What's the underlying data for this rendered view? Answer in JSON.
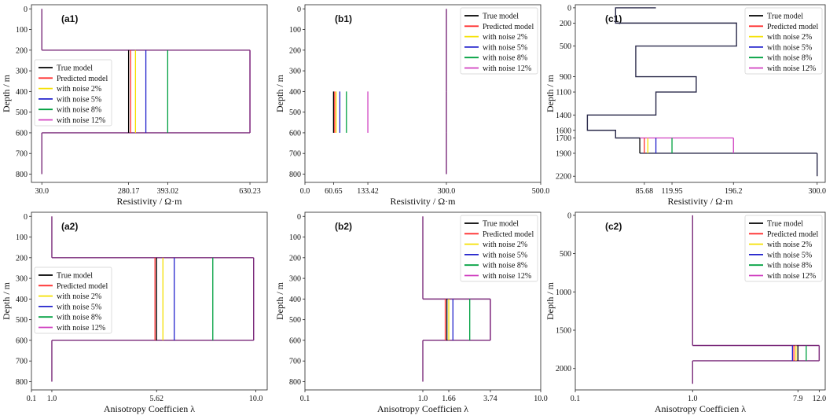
{
  "colors": {
    "true_model": "#000000",
    "predicted": "#ff3030",
    "noise2": "#f5e000",
    "noise5": "#2222cc",
    "noise8": "#00a040",
    "noise12": "#d040c0",
    "overlay": "#7a2a7a"
  },
  "chart_data": [
    {
      "id": "a1",
      "type": "line",
      "panel_label": "(a1)",
      "xlabel": "Resistivity / Ω·m",
      "ylabel": "Depth / m",
      "xscale": "linear",
      "xlim": [
        0,
        680
      ],
      "ylim": [
        -20,
        840
      ],
      "xticks": [
        30.0,
        280.17,
        393.02,
        630.23
      ],
      "xtick_labels": [
        "30.0",
        "280.17",
        "393.02",
        "630.23"
      ],
      "yticks": [
        0,
        100,
        200,
        300,
        400,
        500,
        600,
        700,
        800
      ],
      "ytick_labels": [
        "0",
        "100",
        "200",
        "300",
        "400",
        "500",
        "600",
        "700",
        "800"
      ],
      "legend": [
        "True model",
        "Predicted model",
        "with noise 2%",
        "with noise 5%",
        "with noise 8%",
        "with noise 12%"
      ],
      "legend_position": "center-left",
      "base_layers": [
        {
          "top": 0,
          "bottom": 200,
          "value": 30
        },
        {
          "top": 600,
          "bottom": 800,
          "value": 30
        }
      ],
      "anomaly_layer": {
        "top": 200,
        "bottom": 600,
        "right_edge": 630.23
      },
      "series": [
        {
          "name": "True model",
          "key": "true_model",
          "value": 280.17
        },
        {
          "name": "Predicted model",
          "key": "predicted",
          "value": 286
        },
        {
          "name": "with noise 2%",
          "key": "noise2",
          "value": 300
        },
        {
          "name": "with noise 5%",
          "key": "noise5",
          "value": 330
        },
        {
          "name": "with noise 8%",
          "key": "noise8",
          "value": 393.02
        },
        {
          "name": "with noise 12%",
          "key": "noise12",
          "value": 630.23
        }
      ]
    },
    {
      "id": "b1",
      "type": "line",
      "panel_label": "(b1)",
      "xlabel": "Resistivity / Ω·m",
      "ylabel": "Depth / m",
      "xscale": "linear",
      "xlim": [
        0,
        500
      ],
      "ylim": [
        -20,
        840
      ],
      "xticks": [
        0,
        60.65,
        133.42,
        300.0,
        500.0
      ],
      "xtick_labels": [
        "0.0",
        "60.65",
        "133.42",
        "300.0",
        "500.0"
      ],
      "yticks": [
        0,
        100,
        200,
        300,
        400,
        500,
        600,
        700,
        800
      ],
      "ytick_labels": [
        "0",
        "100",
        "200",
        "300",
        "400",
        "500",
        "600",
        "700",
        "800"
      ],
      "legend": [
        "True model",
        "Predicted model",
        "with noise 2%",
        "with noise 5%",
        "with noise 8%",
        "with noise 12%"
      ],
      "legend_position": "top-right",
      "base_layers": [
        {
          "top": 0,
          "bottom": 400,
          "value": 300
        },
        {
          "top": 600,
          "bottom": 800,
          "value": 300
        }
      ],
      "anomaly_layer": {
        "top": 400,
        "bottom": 600,
        "right_edge": 300
      },
      "series": [
        {
          "name": "True model",
          "key": "true_model",
          "value": 60.65
        },
        {
          "name": "Predicted model",
          "key": "predicted",
          "value": 63
        },
        {
          "name": "with noise 2%",
          "key": "noise2",
          "value": 66
        },
        {
          "name": "with noise 5%",
          "key": "noise5",
          "value": 74
        },
        {
          "name": "with noise 8%",
          "key": "noise8",
          "value": 88
        },
        {
          "name": "with noise 12%",
          "key": "noise12",
          "value": 133.42
        }
      ]
    },
    {
      "id": "c1",
      "type": "line",
      "panel_label": "(c1)",
      "xlabel": "Resistivity / Ω·m",
      "ylabel": "Depth / m",
      "xscale": "linear",
      "xlim": [
        0,
        310
      ],
      "ylim": [
        -40,
        2280
      ],
      "xticks": [
        85.68,
        119.95,
        196.2,
        300.0
      ],
      "xtick_labels": [
        "85.68",
        "119.95",
        "196.2",
        "300.0"
      ],
      "yticks": [
        0,
        200,
        500,
        900,
        1100,
        1400,
        1600,
        1700,
        1900,
        2200
      ],
      "ytick_labels": [
        "0",
        "200",
        "500",
        "900",
        "1100",
        "1400",
        "1600",
        "1700",
        "1900",
        "2200"
      ],
      "legend": [
        "True model",
        "Predicted model",
        "with noise 2%",
        "with noise 5%",
        "with noise 8%",
        "with noise 12%"
      ],
      "legend_position": "top-right",
      "profile": [
        [
          100,
          0
        ],
        [
          50,
          0
        ],
        [
          50,
          200
        ],
        [
          200,
          200
        ],
        [
          200,
          500
        ],
        [
          75,
          500
        ],
        [
          75,
          900
        ],
        [
          150,
          900
        ],
        [
          150,
          1100
        ],
        [
          100,
          1100
        ],
        [
          100,
          1400
        ],
        [
          15,
          1400
        ],
        [
          15,
          1600
        ],
        [
          50,
          1600
        ],
        [
          50,
          1700
        ],
        [
          80,
          1700
        ]
      ],
      "bottom_profile": [
        [
          300,
          1900
        ],
        [
          300,
          2200
        ]
      ],
      "anomaly_layer": {
        "top": 1700,
        "bottom": 1900,
        "right_edge": 300
      },
      "series": [
        {
          "name": "True model",
          "key": "true_model",
          "value": 80
        },
        {
          "name": "Predicted model",
          "key": "predicted",
          "value": 85.68
        },
        {
          "name": "with noise 2%",
          "key": "noise2",
          "value": 90
        },
        {
          "name": "with noise 5%",
          "key": "noise5",
          "value": 100
        },
        {
          "name": "with noise 8%",
          "key": "noise8",
          "value": 119.95
        },
        {
          "name": "with noise 12%",
          "key": "noise12",
          "value": 196.2
        }
      ]
    },
    {
      "id": "a2",
      "type": "line",
      "panel_label": "(a2)",
      "xlabel": "Anisotropy Coefficien λ",
      "ylabel": "Depth / m",
      "xscale": "linear",
      "xlim": [
        0.1,
        10.5
      ],
      "ylim": [
        -20,
        840
      ],
      "xticks": [
        0.1,
        1.0,
        5.62,
        10.0
      ],
      "xtick_labels": [
        "0.1",
        "1.0",
        "5.62",
        "10.0"
      ],
      "yticks": [
        0,
        100,
        200,
        300,
        400,
        500,
        600,
        700,
        800
      ],
      "ytick_labels": [
        "0",
        "100",
        "200",
        "300",
        "400",
        "500",
        "600",
        "700",
        "800"
      ],
      "legend": [
        "True model",
        "Predicted model",
        "with noise 2%",
        "with noise 5%",
        "with noise 8%",
        "with noise 12%"
      ],
      "legend_position": "center-left",
      "base_layers": [
        {
          "top": 0,
          "bottom": 200,
          "value": 1.0
        },
        {
          "top": 600,
          "bottom": 800,
          "value": 1.0
        }
      ],
      "anomaly_layer": {
        "top": 200,
        "bottom": 600,
        "right_edge": 9.9
      },
      "series": [
        {
          "name": "True model",
          "key": "true_model",
          "value": 5.62
        },
        {
          "name": "Predicted model",
          "key": "predicted",
          "value": 5.55
        },
        {
          "name": "with noise 2%",
          "key": "noise2",
          "value": 5.9
        },
        {
          "name": "with noise 5%",
          "key": "noise5",
          "value": 6.4
        },
        {
          "name": "with noise 8%",
          "key": "noise8",
          "value": 8.1
        },
        {
          "name": "with noise 12%",
          "key": "noise12",
          "value": 9.9
        }
      ]
    },
    {
      "id": "b2",
      "type": "line",
      "panel_label": "(b2)",
      "xlabel": "Anisotropy Coefficien λ",
      "ylabel": "Depth / m",
      "xscale": "log",
      "xlim": [
        0.1,
        10.0
      ],
      "ylim": [
        -20,
        840
      ],
      "xticks": [
        0.1,
        1.0,
        1.66,
        3.74,
        10.0
      ],
      "xtick_labels": [
        "0.1",
        "1.0",
        "1.66",
        "3.74",
        "10.0"
      ],
      "yticks": [
        0,
        100,
        200,
        300,
        400,
        500,
        600,
        700,
        800
      ],
      "ytick_labels": [
        "0",
        "100",
        "200",
        "300",
        "400",
        "500",
        "600",
        "700",
        "800"
      ],
      "legend": [
        "True model",
        "Predicted model",
        "with noise 2%",
        "with noise 5%",
        "with noise 8%",
        "with noise 12%"
      ],
      "legend_position": "top-right",
      "base_layers": [
        {
          "top": 0,
          "bottom": 400,
          "value": 1.0
        },
        {
          "top": 600,
          "bottom": 800,
          "value": 1.0
        }
      ],
      "anomaly_layer": {
        "top": 400,
        "bottom": 600,
        "right_edge": 3.74
      },
      "series": [
        {
          "name": "True model",
          "key": "true_model",
          "value": 1.6
        },
        {
          "name": "Predicted model",
          "key": "predicted",
          "value": 1.55
        },
        {
          "name": "with noise 2%",
          "key": "noise2",
          "value": 1.66
        },
        {
          "name": "with noise 5%",
          "key": "noise5",
          "value": 1.8
        },
        {
          "name": "with noise 8%",
          "key": "noise8",
          "value": 2.5
        },
        {
          "name": "with noise 12%",
          "key": "noise12",
          "value": 3.74
        }
      ]
    },
    {
      "id": "c2",
      "type": "line",
      "panel_label": "(c2)",
      "xlabel": "Anisotropy Coefficien λ",
      "ylabel": "Depth / m",
      "xscale": "log",
      "xlim": [
        0.1,
        13.5
      ],
      "ylim": [
        -40,
        2280
      ],
      "xticks": [
        0.1,
        1.0,
        7.9,
        12.0
      ],
      "xtick_labels": [
        "0.1",
        "1.0",
        "7.9",
        "12.0"
      ],
      "yticks": [
        0,
        500,
        1000,
        1500,
        2000
      ],
      "ytick_labels": [
        "0",
        "500",
        "1000",
        "1500",
        "2000"
      ],
      "legend": [
        "True model",
        "Predicted model",
        "with noise 2%",
        "with noise 5%",
        "with noise 8%",
        "with noise 12%"
      ],
      "legend_position": "top-right",
      "base_layers": [
        {
          "top": 0,
          "bottom": 1700,
          "value": 1.0
        },
        {
          "top": 1900,
          "bottom": 2200,
          "value": 1.0
        }
      ],
      "anomaly_layer": {
        "top": 1700,
        "bottom": 1900,
        "right_edge": 12.0
      },
      "series": [
        {
          "name": "True model",
          "key": "true_model",
          "value": 7.9
        },
        {
          "name": "Predicted model",
          "key": "predicted",
          "value": 7.3
        },
        {
          "name": "with noise 2%",
          "key": "noise2",
          "value": 7.6
        },
        {
          "name": "with noise 5%",
          "key": "noise5",
          "value": 7.1
        },
        {
          "name": "with noise 8%",
          "key": "noise8",
          "value": 9.3
        },
        {
          "name": "with noise 12%",
          "key": "noise12",
          "value": 12.0
        }
      ]
    }
  ]
}
